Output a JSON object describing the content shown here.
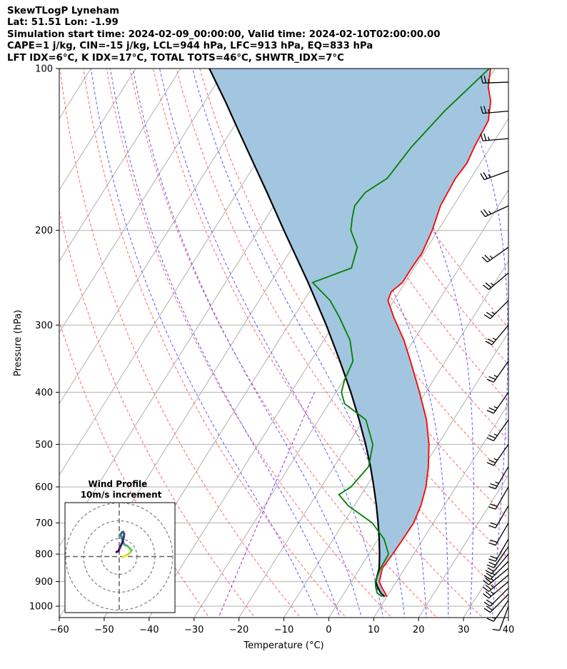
{
  "header": {
    "line1": "SkewTLogP Lyneham",
    "line2": "Lat: 51.51   Lon: -1.99",
    "line3": "Simulation start time: 2024-02-09_00:00:00, Valid time: 2024-02-10T02:00:00.00",
    "line4": "CAPE=1 j/kg, CIN=-15 j/kg, LCL=944 hPa, LFC=913 hPa, EQ=833 hPa",
    "line5": "LFT IDX=6°C, K IDX=17°C, TOTAL TOTS=46°C, SHWTR_IDX=7°C"
  },
  "colors": {
    "temperature": "#ff0000",
    "dewpoint": "#008000",
    "parcel": "#000000",
    "shade": "#a2c6e0",
    "dry_adiabat": "#ff6666",
    "moist_adiabat": "#5a5aff",
    "isotherm": "#b0b0b0",
    "isobar": "#b0b0b0",
    "mixing_ratio": "#9b30c8"
  },
  "chart_data": {
    "type": "line",
    "title": "SkewTLogP Lyneham",
    "xlabel": "Temperature (°C)",
    "ylabel": "Pressure (hPa)",
    "xlim": [
      -60,
      40
    ],
    "ylim": [
      1050,
      100
    ],
    "x_ticks": [
      -60,
      -50,
      -40,
      -30,
      -20,
      -10,
      0,
      10,
      20,
      30,
      40
    ],
    "x_tick_labels": [
      "−60",
      "−50",
      "−40",
      "−30",
      "−20",
      "−10",
      "0",
      "10",
      "20",
      "30",
      "40"
    ],
    "y_ticks": [
      1000,
      900,
      800,
      700,
      600,
      500,
      400,
      300,
      200,
      100
    ],
    "y_tick_labels": [
      "1000",
      "900",
      "800",
      "700",
      "600",
      "500",
      "400",
      "300",
      "200",
      "100"
    ],
    "isotherms": [
      -150,
      -140,
      -130,
      -120,
      -110,
      -100,
      -90,
      -80,
      -70,
      -60,
      -50,
      -40,
      -30,
      -20,
      -10,
      0,
      10,
      20,
      30,
      40
    ],
    "dry_adiabats_theta_c": [
      -30,
      -20,
      -10,
      0,
      10,
      20,
      30,
      40,
      50,
      60,
      70,
      80,
      90,
      100,
      110
    ],
    "moist_adiabats_surface_c": [
      -5,
      0,
      5,
      10,
      15,
      20,
      25,
      30,
      35,
      40,
      45
    ],
    "mixing_ratio_lines_gkg": [
      0.5
    ],
    "series": [
      {
        "name": "Temperature",
        "pressure": [
          960,
          945,
          920,
          900,
          850,
          800,
          750,
          700,
          650,
          600,
          550,
          500,
          450,
          400,
          350,
          320,
          290,
          270,
          260,
          250,
          235,
          220,
          200,
          180,
          160,
          150,
          140,
          125,
          115,
          108,
          100
        ],
        "values": [
          10.0,
          9.1,
          7.4,
          6.2,
          5.0,
          5.3,
          5.5,
          5.6,
          4.8,
          3.3,
          1.0,
          -2.0,
          -6.0,
          -11.4,
          -17.8,
          -22.2,
          -27.7,
          -31.3,
          -31.8,
          -30.6,
          -30.6,
          -30.4,
          -31.3,
          -32.9,
          -33.4,
          -33.0,
          -33.6,
          -34.2,
          -36.4,
          -39.0,
          -41.0
        ]
      },
      {
        "name": "Dewpoint",
        "pressure": [
          960,
          945,
          920,
          900,
          850,
          800,
          750,
          700,
          650,
          620,
          600,
          550,
          500,
          450,
          420,
          400,
          380,
          350,
          320,
          290,
          270,
          250,
          235,
          215,
          200,
          190,
          180,
          170,
          160,
          140,
          120,
          100
        ],
        "values": [
          9.0,
          7.3,
          6.1,
          5.3,
          4.6,
          4.4,
          1.3,
          -3.6,
          -11.4,
          -15.0,
          -13.4,
          -12.3,
          -14.5,
          -19.5,
          -26.5,
          -28.8,
          -29.8,
          -30.6,
          -34.2,
          -39.8,
          -44.2,
          -50.6,
          -44.0,
          -45.6,
          -49.4,
          -50.8,
          -52.0,
          -51.5,
          -48.6,
          -47.6,
          -45.3,
          -41.3
        ]
      },
      {
        "name": "Parcel",
        "pressure": [
          960,
          945,
          920,
          900,
          850,
          800,
          750,
          700,
          650,
          600,
          550,
          500,
          450,
          400,
          350,
          300,
          250,
          200,
          170,
          150,
          130,
          115,
          100
        ],
        "values": [
          9.5,
          8.1,
          6.5,
          5.4,
          4.3,
          2.4,
          0.2,
          -2.3,
          -5.1,
          -8.3,
          -11.9,
          -16.1,
          -21.0,
          -26.7,
          -33.5,
          -41.6,
          -51.6,
          -64.3,
          -73.4,
          -80.5,
          -88.6,
          -95.5,
          -103.6
        ]
      }
    ],
    "shaded_region": "between parcel and temperature from 960 to 100 hPa",
    "wind_barbs": [
      {
        "pressure": 1000,
        "speed_kt": 10,
        "direction_deg": 200
      },
      {
        "pressure": 975,
        "speed_kt": 15,
        "direction_deg": 215
      },
      {
        "pressure": 950,
        "speed_kt": 20,
        "direction_deg": 225
      },
      {
        "pressure": 925,
        "speed_kt": 20,
        "direction_deg": 225
      },
      {
        "pressure": 900,
        "speed_kt": 25,
        "direction_deg": 230
      },
      {
        "pressure": 875,
        "speed_kt": 25,
        "direction_deg": 230
      },
      {
        "pressure": 850,
        "speed_kt": 25,
        "direction_deg": 230
      },
      {
        "pressure": 825,
        "speed_kt": 25,
        "direction_deg": 225
      },
      {
        "pressure": 800,
        "speed_kt": 20,
        "direction_deg": 220
      },
      {
        "pressure": 775,
        "speed_kt": 20,
        "direction_deg": 215
      },
      {
        "pressure": 750,
        "speed_kt": 20,
        "direction_deg": 210
      },
      {
        "pressure": 700,
        "speed_kt": 20,
        "direction_deg": 210
      },
      {
        "pressure": 650,
        "speed_kt": 20,
        "direction_deg": 210
      },
      {
        "pressure": 600,
        "speed_kt": 20,
        "direction_deg": 210
      },
      {
        "pressure": 550,
        "speed_kt": 25,
        "direction_deg": 210
      },
      {
        "pressure": 500,
        "speed_kt": 25,
        "direction_deg": 215
      },
      {
        "pressure": 450,
        "speed_kt": 25,
        "direction_deg": 215
      },
      {
        "pressure": 400,
        "speed_kt": 25,
        "direction_deg": 215
      },
      {
        "pressure": 350,
        "speed_kt": 25,
        "direction_deg": 215
      },
      {
        "pressure": 300,
        "speed_kt": 25,
        "direction_deg": 220
      },
      {
        "pressure": 270,
        "speed_kt": 25,
        "direction_deg": 225
      },
      {
        "pressure": 240,
        "speed_kt": 25,
        "direction_deg": 230
      },
      {
        "pressure": 215,
        "speed_kt": 25,
        "direction_deg": 235
      },
      {
        "pressure": 180,
        "speed_kt": 25,
        "direction_deg": 245
      },
      {
        "pressure": 155,
        "speed_kt": 25,
        "direction_deg": 250
      },
      {
        "pressure": 135,
        "speed_kt": 25,
        "direction_deg": 265
      },
      {
        "pressure": 120,
        "speed_kt": 25,
        "direction_deg": 265
      },
      {
        "pressure": 106,
        "speed_kt": 25,
        "direction_deg": 268
      }
    ],
    "inset": {
      "title_line1": "Wind Profile",
      "title_line2": "10m/s increment",
      "rings_ms": [
        10,
        20,
        30
      ],
      "hodograph_u": [
        2,
        3.5,
        5.5,
        6.5,
        7.0,
        6.0,
        4.5,
        3.0,
        2.5,
        1.8,
        1.2,
        0.8,
        1.5,
        2.3,
        2.8,
        2.6,
        2.2,
        1.8,
        -0.5,
        -1.5
      ],
      "hodograph_v": [
        -0.5,
        0.5,
        1.5,
        2.8,
        3.5,
        4.5,
        6.0,
        6.5,
        7.5,
        9.5,
        11.0,
        12.5,
        13.5,
        13.8,
        12.5,
        11.0,
        9.5,
        8.0,
        3.0,
        2.5
      ]
    }
  }
}
